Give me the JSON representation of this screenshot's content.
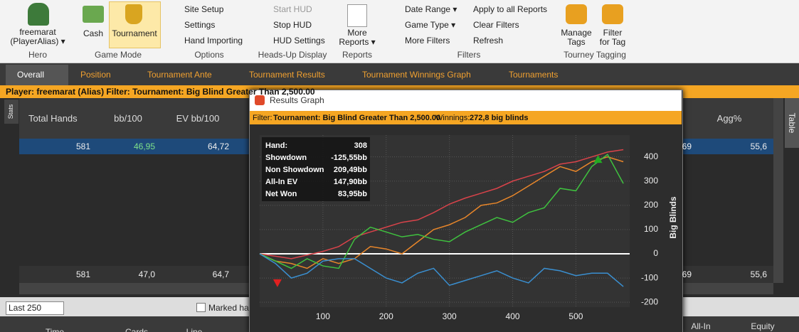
{
  "ribbon": {
    "groups": [
      {
        "label": "Hero",
        "items": [
          "freemarat",
          "(PlayerAlias) ▾"
        ]
      },
      {
        "label": "Game Mode",
        "items": [
          "Cash",
          "Tournament"
        ]
      },
      {
        "label": "Options",
        "items": [
          "Site Setup",
          "Settings",
          "Hand Importing"
        ]
      },
      {
        "label": "Heads-Up Display",
        "items": [
          "Start HUD",
          "Stop HUD",
          "HUD Settings"
        ]
      },
      {
        "label": "Reports",
        "items": [
          "More",
          "Reports ▾"
        ]
      },
      {
        "label": "Filters",
        "items": [
          "Date Range ▾",
          "Game Type ▾",
          "More Filters",
          "Apply to all Reports",
          "Clear Filters",
          "Refresh"
        ]
      },
      {
        "label": "Tourney Tagging",
        "items": [
          "Manage",
          "Tags",
          "Filter",
          "for Tag"
        ]
      }
    ]
  },
  "tabs": [
    "Overall",
    "Position",
    "Tournament Ante",
    "Tournament Results",
    "Tournament Winnings Graph",
    "Tournaments"
  ],
  "filter_bar": "Player: freemarat (Alias)   Filter: Tournament: Big Blind Greater Than 2,500.00",
  "stats_table": {
    "side_tab": "Stats",
    "columns": [
      "Total Hands",
      "bb/100",
      "EV bb/100",
      null,
      "Agg%"
    ],
    "rows": [
      [
        "581",
        "46,95",
        "64,72",
        "69",
        "55,6"
      ]
    ],
    "totals": [
      "581",
      "47,0",
      "64,7",
      "69",
      "55,6"
    ]
  },
  "side_tab": "Table",
  "hands_panel": {
    "range": "Last 250",
    "checkbox": "Marked ha",
    "columns": [
      "Time",
      "Cards",
      "Line",
      "All-In",
      "Equity"
    ]
  },
  "graph": {
    "window_title": "Results Graph",
    "filter_label": "Filter:",
    "filter": "Tournament: Big Blind Greater Than 2,500.00",
    "winnings_label": "Winnings:",
    "winnings": "272,8 big blinds",
    "tooltip": [
      [
        "Hand:",
        "308"
      ],
      [
        "Showdown",
        "-125,55bb"
      ],
      [
        "Non Showdown",
        "209,49bb"
      ],
      [
        "All-In EV",
        "147,90bb"
      ],
      [
        "Net Won",
        "83,95bb"
      ]
    ],
    "chart_data": {
      "type": "line",
      "y_label": "Big Blinds",
      "x": [
        0,
        25,
        50,
        75,
        100,
        125,
        150,
        175,
        200,
        225,
        250,
        275,
        300,
        325,
        350,
        375,
        400,
        425,
        450,
        475,
        500,
        525,
        550,
        575
      ],
      "series": [
        {
          "name": "Non Showdown",
          "color": "#d9434a",
          "values": [
            0,
            -10,
            -20,
            -5,
            10,
            30,
            70,
            90,
            110,
            130,
            140,
            170,
            205,
            230,
            250,
            270,
            300,
            320,
            340,
            370,
            380,
            400,
            420,
            430
          ]
        },
        {
          "name": "All-In EV",
          "color": "#e8862a",
          "values": [
            0,
            -30,
            -40,
            -60,
            -20,
            -40,
            -20,
            30,
            20,
            0,
            50,
            100,
            120,
            150,
            200,
            210,
            240,
            280,
            320,
            360,
            340,
            380,
            400,
            380
          ]
        },
        {
          "name": "Net Won",
          "color": "#3fc23f",
          "values": [
            0,
            -30,
            -60,
            -20,
            -50,
            -60,
            60,
            110,
            90,
            70,
            80,
            60,
            50,
            90,
            120,
            150,
            130,
            170,
            190,
            270,
            260,
            360,
            410,
            290
          ]
        },
        {
          "name": "Showdown",
          "color": "#3a8fd0",
          "values": [
            0,
            -40,
            -100,
            -80,
            -30,
            -20,
            -20,
            -60,
            -100,
            -120,
            -80,
            -60,
            -130,
            -110,
            -90,
            -70,
            -100,
            -120,
            -60,
            -70,
            -90,
            -80,
            -80,
            -135
          ]
        }
      ],
      "markers": [
        {
          "x": 28,
          "y": -120,
          "color": "#e02020"
        },
        {
          "x": 535,
          "y": 390,
          "color": "#22aa22"
        }
      ],
      "xlim": [
        0,
        585
      ],
      "ylim": [
        -220,
        490
      ],
      "xticks": [
        100,
        200,
        300,
        400,
        500
      ],
      "yticks": [
        -200,
        -100,
        0,
        100,
        200,
        300,
        400
      ],
      "grid": true
    }
  }
}
